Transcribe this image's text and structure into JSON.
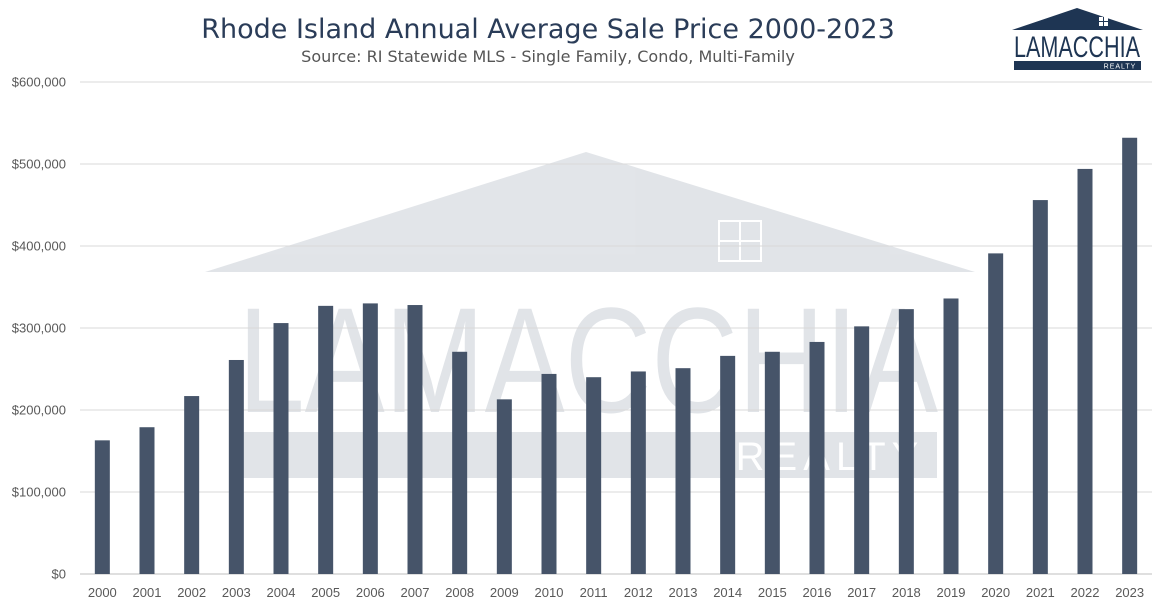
{
  "chart_data": {
    "type": "bar",
    "title": "Rhode Island Annual Average Sale Price 2000-2023",
    "subtitle": "Source: RI Statewide MLS - Single Family, Condo, Multi-Family",
    "xlabel": "",
    "ylabel": "",
    "ylim": [
      0,
      600000
    ],
    "y_ticks": [
      0,
      100000,
      200000,
      300000,
      400000,
      500000,
      600000
    ],
    "y_tick_labels": [
      "$0",
      "$100,000",
      "$200,000",
      "$300,000",
      "$400,000",
      "$500,000",
      "$600,000"
    ],
    "grid": true,
    "legend": "none",
    "categories": [
      "2000",
      "2001",
      "2002",
      "2003",
      "2004",
      "2005",
      "2006",
      "2007",
      "2008",
      "2009",
      "2010",
      "2011",
      "2012",
      "2013",
      "2014",
      "2015",
      "2016",
      "2017",
      "2018",
      "2019",
      "2020",
      "2021",
      "2022",
      "2023"
    ],
    "values": [
      163000,
      179000,
      217000,
      261000,
      306000,
      327000,
      330000,
      328000,
      271000,
      213000,
      244000,
      240000,
      247000,
      251000,
      266000,
      271000,
      283000,
      302000,
      323000,
      336000,
      391000,
      456000,
      494000,
      532000
    ],
    "bar_color": "#465469"
  },
  "logo": {
    "name": "LAMACCHIA",
    "sub": "REALTY",
    "color": "#1e3553"
  },
  "watermark": {
    "name": "LAMACCHIA",
    "sub": "REALTY"
  },
  "colors": {
    "title": "#2a3c58",
    "subtitle": "#555555",
    "axis_text": "#595959",
    "grid": "#d9d9d9"
  }
}
